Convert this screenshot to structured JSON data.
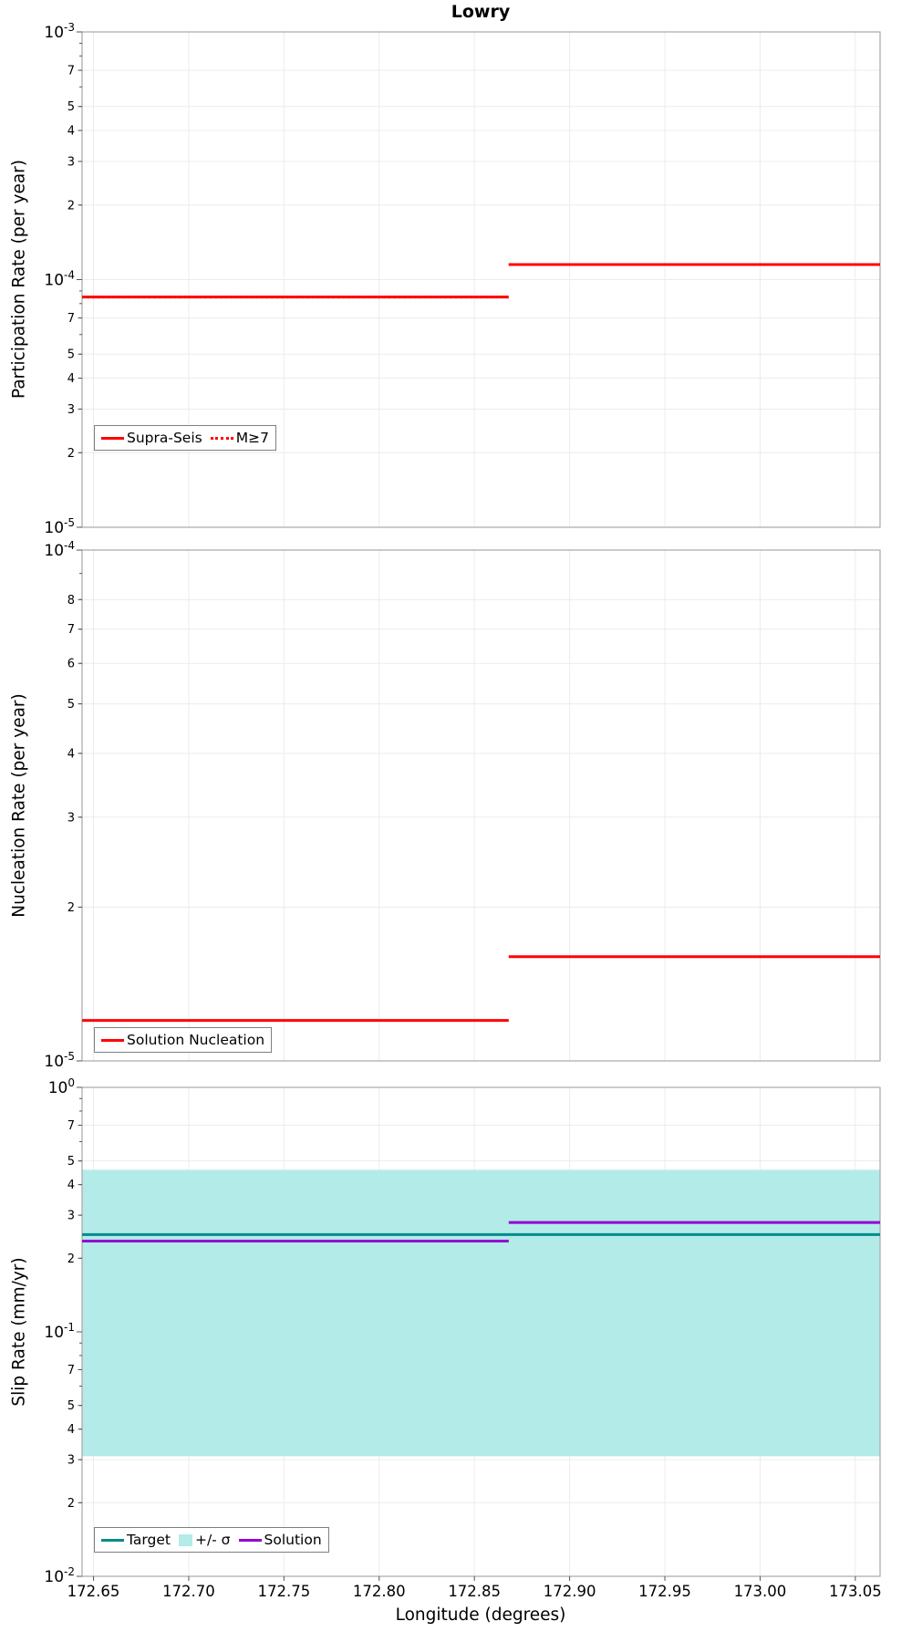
{
  "title": "Lowry",
  "xlabel": "Longitude (degrees)",
  "xlim": [
    172.644,
    173.063
  ],
  "x_ticks": [
    172.65,
    172.7,
    172.75,
    172.8,
    172.85,
    172.9,
    172.95,
    173.0,
    173.05
  ],
  "x_tick_labels": [
    "172.65",
    "172.70",
    "172.75",
    "172.80",
    "172.85",
    "172.90",
    "172.95",
    "173.00",
    "173.05"
  ],
  "step_longitude": 172.868,
  "colors": {
    "red": "#ff0000",
    "teal": "#008b8b",
    "band": "#b3ebe8",
    "purple": "#9400d3",
    "grid": "#ececec",
    "frame": "#a8a8a8",
    "tick": "#555555"
  },
  "chart_data": [
    {
      "type": "line",
      "panel": "participation",
      "ylabel": "Participation Rate (per year)",
      "yscale": "log",
      "ylim": [
        1e-05,
        0.001
      ],
      "y_ticks": [
        {
          "v": 0.001,
          "t": "10",
          "e": "-3"
        },
        {
          "v": 0.0007,
          "t": "7"
        },
        {
          "v": 0.0005,
          "t": "5"
        },
        {
          "v": 0.0004,
          "t": "4"
        },
        {
          "v": 0.0003,
          "t": "3"
        },
        {
          "v": 0.0002,
          "t": "2"
        },
        {
          "v": 0.0001,
          "t": "10",
          "e": "-4"
        },
        {
          "v": 7e-05,
          "t": "7"
        },
        {
          "v": 5e-05,
          "t": "5"
        },
        {
          "v": 4e-05,
          "t": "4"
        },
        {
          "v": 3e-05,
          "t": "3"
        },
        {
          "v": 2e-05,
          "t": "2"
        },
        {
          "v": 1e-05,
          "t": "10",
          "e": "-5"
        }
      ],
      "series": [
        {
          "name": "Supra-Seis",
          "color": "#ff0000",
          "dash": "solid",
          "width": 3,
          "segments": [
            {
              "x": [
                172.644,
                172.868
              ],
              "y": 8.5e-05
            },
            {
              "x": [
                172.868,
                173.063
              ],
              "y": 0.000115
            }
          ]
        },
        {
          "name": "M≥7",
          "color": "#ff0000",
          "dash": "dotted",
          "width": 3,
          "segments": [
            {
              "x": [
                172.644,
                172.868
              ],
              "y": 8.5e-05
            },
            {
              "x": [
                172.868,
                173.063
              ],
              "y": 0.000115
            }
          ]
        }
      ],
      "legend": [
        {
          "label": "Supra-Seis",
          "swatch": "line-solid",
          "color": "#ff0000"
        },
        {
          "label": "M≥7",
          "swatch": "line-dotted",
          "color": "#ff0000"
        }
      ]
    },
    {
      "type": "line",
      "panel": "nucleation",
      "ylabel": "Nucleation Rate (per year)",
      "yscale": "log",
      "ylim": [
        1e-05,
        0.0001
      ],
      "y_ticks": [
        {
          "v": 0.0001,
          "t": "10",
          "e": "-4"
        },
        {
          "v": 8e-05,
          "t": "8"
        },
        {
          "v": 7e-05,
          "t": "7"
        },
        {
          "v": 6e-05,
          "t": "6"
        },
        {
          "v": 5e-05,
          "t": "5"
        },
        {
          "v": 4e-05,
          "t": "4"
        },
        {
          "v": 3e-05,
          "t": "3"
        },
        {
          "v": 2e-05,
          "t": "2"
        },
        {
          "v": 1e-05,
          "t": "10",
          "e": "-5"
        }
      ],
      "series": [
        {
          "name": "Solution Nucleation",
          "color": "#ff0000",
          "dash": "solid",
          "width": 3,
          "segments": [
            {
              "x": [
                172.644,
                172.868
              ],
              "y": 1.2e-05
            },
            {
              "x": [
                172.868,
                173.063
              ],
              "y": 1.6e-05
            }
          ]
        }
      ],
      "legend": [
        {
          "label": "Solution Nucleation",
          "swatch": "line-solid",
          "color": "#ff0000"
        }
      ]
    },
    {
      "type": "line",
      "panel": "slip-rate",
      "ylabel": "Slip Rate (mm/yr)",
      "yscale": "log",
      "ylim": [
        0.01,
        1
      ],
      "y_ticks": [
        {
          "v": 1,
          "t": "10",
          "e": "0"
        },
        {
          "v": 0.7,
          "t": "7"
        },
        {
          "v": 0.5,
          "t": "5"
        },
        {
          "v": 0.4,
          "t": "4"
        },
        {
          "v": 0.3,
          "t": "3"
        },
        {
          "v": 0.2,
          "t": "2"
        },
        {
          "v": 0.1,
          "t": "10",
          "e": "-1"
        },
        {
          "v": 0.07,
          "t": "7"
        },
        {
          "v": 0.05,
          "t": "5"
        },
        {
          "v": 0.04,
          "t": "4"
        },
        {
          "v": 0.03,
          "t": "3"
        },
        {
          "v": 0.02,
          "t": "2"
        },
        {
          "v": 0.01,
          "t": "10",
          "e": "-2"
        }
      ],
      "band": {
        "name": "+/- σ",
        "x": [
          172.644,
          173.063
        ],
        "y": [
          0.031,
          0.46
        ],
        "color": "#b3ebe8"
      },
      "series": [
        {
          "name": "Target",
          "color": "#008b8b",
          "dash": "solid",
          "width": 3,
          "segments": [
            {
              "x": [
                172.644,
                173.063
              ],
              "y": 0.25
            }
          ]
        },
        {
          "name": "Solution",
          "color": "#9400d3",
          "dash": "solid",
          "width": 3,
          "segments": [
            {
              "x": [
                172.644,
                172.868
              ],
              "y": 0.235
            },
            {
              "x": [
                172.868,
                173.063
              ],
              "y": 0.28
            }
          ]
        }
      ],
      "legend": [
        {
          "label": "Target",
          "swatch": "line-solid",
          "color": "#008b8b"
        },
        {
          "label": "+/- σ",
          "swatch": "patch",
          "color": "#b3ebe8"
        },
        {
          "label": "Solution",
          "swatch": "line-solid",
          "color": "#9400d3"
        }
      ]
    }
  ]
}
